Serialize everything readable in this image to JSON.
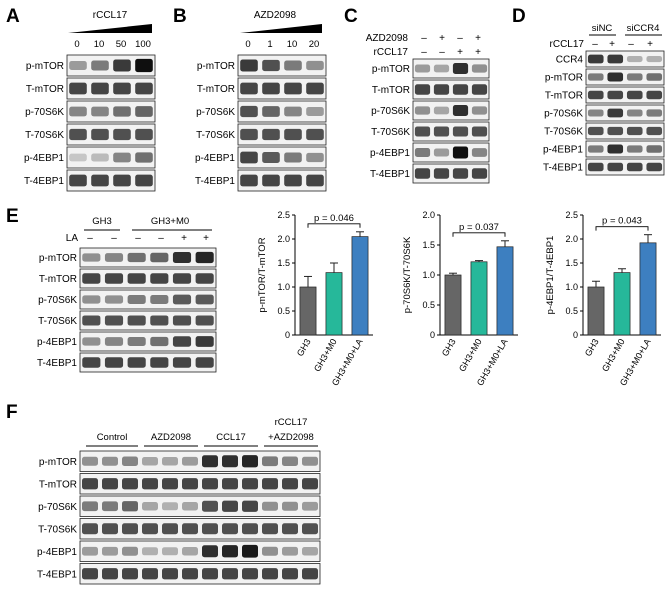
{
  "panels": {
    "A": {
      "letter": "A",
      "header": "rCCL17",
      "doses": [
        "0",
        "10",
        "50",
        "100"
      ],
      "rows": [
        "p-mTOR",
        "T-mTOR",
        "p-70S6K",
        "T-70S6K",
        "p-4EBP1",
        "T-4EBP1"
      ],
      "strengths": [
        [
          0.35,
          0.5,
          0.8,
          1.0
        ],
        [
          0.75,
          0.75,
          0.75,
          0.75
        ],
        [
          0.45,
          0.45,
          0.55,
          0.6
        ],
        [
          0.7,
          0.7,
          0.7,
          0.7
        ],
        [
          0.15,
          0.2,
          0.45,
          0.55
        ],
        [
          0.75,
          0.75,
          0.75,
          0.75
        ]
      ]
    },
    "B": {
      "letter": "B",
      "header": "AZD2098",
      "doses": [
        "0",
        "1",
        "10",
        "20"
      ],
      "rows": [
        "p-mTOR",
        "T-mTOR",
        "p-70S6K",
        "T-70S6K",
        "p-4EBP1",
        "T-4EBP1"
      ],
      "strengths": [
        [
          0.8,
          0.7,
          0.5,
          0.4
        ],
        [
          0.75,
          0.75,
          0.75,
          0.75
        ],
        [
          0.7,
          0.6,
          0.45,
          0.35
        ],
        [
          0.7,
          0.7,
          0.7,
          0.7
        ],
        [
          0.75,
          0.65,
          0.5,
          0.4
        ],
        [
          0.75,
          0.75,
          0.75,
          0.75
        ]
      ]
    },
    "C": {
      "letter": "C",
      "treatments": [
        {
          "name": "AZD2098",
          "signs": [
            "–",
            "+",
            "–",
            "+"
          ]
        },
        {
          "name": "rCCL17",
          "signs": [
            "–",
            "–",
            "+",
            "+"
          ]
        }
      ],
      "rows": [
        "p-mTOR",
        "T-mTOR",
        "p-70S6K",
        "T-70S6K",
        "p-4EBP1",
        "T-4EBP1"
      ],
      "strengths": [
        [
          0.35,
          0.3,
          0.85,
          0.4
        ],
        [
          0.75,
          0.75,
          0.75,
          0.75
        ],
        [
          0.4,
          0.3,
          0.85,
          0.4
        ],
        [
          0.7,
          0.7,
          0.7,
          0.7
        ],
        [
          0.5,
          0.35,
          1.0,
          0.45
        ],
        [
          0.75,
          0.75,
          0.75,
          0.75
        ]
      ]
    },
    "D": {
      "letter": "D",
      "groups": [
        "siNC",
        "siCCR4"
      ],
      "treatment": {
        "name": "rCCL17",
        "signs": [
          "–",
          "+",
          "–",
          "+"
        ]
      },
      "rows": [
        "CCR4",
        "p-mTOR",
        "T-mTOR",
        "p-70S6K",
        "T-70S6K",
        "p-4EBP1",
        "T-4EBP1"
      ],
      "strengths": [
        [
          0.8,
          0.8,
          0.25,
          0.25
        ],
        [
          0.5,
          0.85,
          0.5,
          0.55
        ],
        [
          0.75,
          0.75,
          0.75,
          0.75
        ],
        [
          0.45,
          0.8,
          0.45,
          0.5
        ],
        [
          0.7,
          0.7,
          0.7,
          0.7
        ],
        [
          0.5,
          0.85,
          0.5,
          0.55
        ],
        [
          0.75,
          0.75,
          0.75,
          0.75
        ]
      ]
    },
    "E": {
      "letter": "E",
      "groups": [
        "GH3",
        "GH3+M0"
      ],
      "treatment": {
        "name": "LA",
        "signs": [
          "–",
          "–",
          "–",
          "–",
          "+",
          "+"
        ]
      },
      "rows": [
        "p-mTOR",
        "T-mTOR",
        "p-70S6K",
        "T-70S6K",
        "p-4EBP1",
        "T-4EBP1"
      ],
      "strengths": [
        [
          0.4,
          0.45,
          0.55,
          0.6,
          0.85,
          0.9
        ],
        [
          0.75,
          0.75,
          0.75,
          0.75,
          0.75,
          0.75
        ],
        [
          0.4,
          0.4,
          0.5,
          0.5,
          0.65,
          0.65
        ],
        [
          0.7,
          0.7,
          0.7,
          0.7,
          0.7,
          0.7
        ],
        [
          0.4,
          0.45,
          0.5,
          0.55,
          0.75,
          0.8
        ],
        [
          0.75,
          0.75,
          0.75,
          0.75,
          0.75,
          0.75
        ]
      ]
    },
    "F": {
      "letter": "F",
      "groups": [
        "Control",
        "AZD2098",
        "CCL17",
        "rCCL17",
        "+AZD2098"
      ],
      "rows": [
        "p-mTOR",
        "T-mTOR",
        "p-70S6K",
        "T-70S6K",
        "p-4EBP1",
        "T-4EBP1"
      ],
      "strengths": [
        [
          0.4,
          0.4,
          0.45,
          0.3,
          0.3,
          0.35,
          0.85,
          0.85,
          0.9,
          0.5,
          0.45,
          0.4
        ],
        [
          0.75,
          0.75,
          0.75,
          0.75,
          0.75,
          0.75,
          0.75,
          0.75,
          0.75,
          0.75,
          0.75,
          0.75
        ],
        [
          0.5,
          0.5,
          0.6,
          0.3,
          0.25,
          0.3,
          0.7,
          0.75,
          0.75,
          0.4,
          0.4,
          0.35
        ],
        [
          0.7,
          0.7,
          0.7,
          0.7,
          0.7,
          0.7,
          0.7,
          0.7,
          0.7,
          0.7,
          0.7,
          0.7
        ],
        [
          0.35,
          0.35,
          0.4,
          0.25,
          0.25,
          0.3,
          0.85,
          0.9,
          0.95,
          0.4,
          0.35,
          0.3
        ],
        [
          0.75,
          0.75,
          0.75,
          0.75,
          0.75,
          0.75,
          0.75,
          0.75,
          0.75,
          0.75,
          0.75,
          0.75
        ]
      ]
    }
  },
  "chart_data": [
    {
      "type": "bar",
      "categories": [
        "GH3",
        "GH3+M0",
        "GH3+M0+LA"
      ],
      "values": [
        1.0,
        1.3,
        2.05
      ],
      "errors": [
        0.22,
        0.2,
        0.1
      ],
      "ylabel": "p-mTOR/T-mTOR",
      "ylim": [
        0,
        2.5
      ],
      "yticks": [
        "0",
        "0.5",
        "1.0",
        "1.5",
        "2.0",
        "2.5"
      ],
      "annotation": "p = 0.046",
      "colors": [
        "#666666",
        "#26b89a",
        "#3d7fc0"
      ]
    },
    {
      "type": "bar",
      "categories": [
        "GH3",
        "GH3+M0",
        "GH3+M0+LA"
      ],
      "values": [
        1.0,
        1.22,
        1.47
      ],
      "errors": [
        0.03,
        0.02,
        0.1
      ],
      "ylabel": "p-70S6K/T-70S6K",
      "ylim": [
        0,
        2.0
      ],
      "yticks": [
        "0",
        "0.5",
        "1.0",
        "1.5",
        "2.0"
      ],
      "annotation": "p = 0.037",
      "colors": [
        "#666666",
        "#26b89a",
        "#3d7fc0"
      ]
    },
    {
      "type": "bar",
      "categories": [
        "GH3",
        "GH3+M0",
        "GH3+M0+LA"
      ],
      "values": [
        1.0,
        1.3,
        1.92
      ],
      "errors": [
        0.12,
        0.08,
        0.17
      ],
      "ylabel": "p-4EBP1/T-4EBP1",
      "ylim": [
        0,
        2.5
      ],
      "yticks": [
        "0",
        "0.5",
        "1.0",
        "1.5",
        "2.0",
        "2.5"
      ],
      "annotation": "p = 0.043",
      "colors": [
        "#666666",
        "#26b89a",
        "#3d7fc0"
      ]
    }
  ]
}
